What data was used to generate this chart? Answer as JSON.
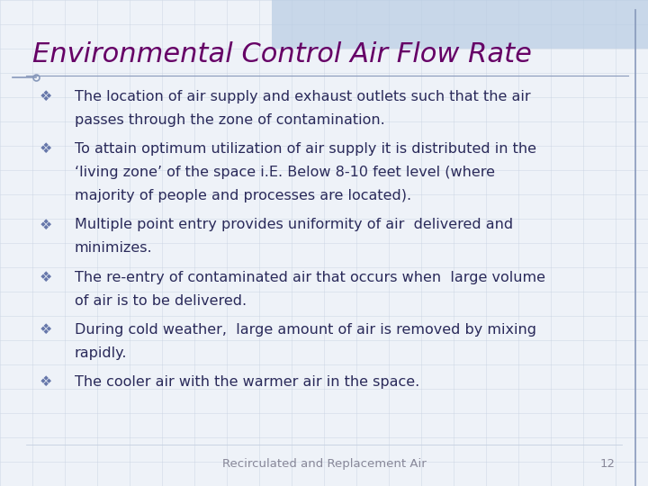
{
  "title": "Environmental Control Air Flow Rate",
  "title_color": "#660066",
  "title_fontsize": 22,
  "background_color": "#eef2f8",
  "grid_color": "#c5cfe0",
  "bullet_color": "#6677aa",
  "text_color": "#2a2a5a",
  "text_fontsize": 11.5,
  "footer_text": "Recirculated and Replacement Air",
  "footer_number": "12",
  "footer_fontsize": 9.5,
  "footer_color": "#888899",
  "bullets": [
    [
      "The location of air supply and exhaust outlets such that the air",
      "passes through the zone of contamination."
    ],
    [
      "To attain optimum utilization of air supply it is distributed in the",
      "‘living zone’ of the space i.E. Below 8-10 feet level (where",
      "majority of people and processes are located)."
    ],
    [
      "Multiple point entry provides uniformity of air  delivered and",
      "minimizes."
    ],
    [
      "The re-entry of contaminated air that occurs when  large volume",
      "of air is to be delivered."
    ],
    [
      "During cold weather,  large amount of air is removed by mixing",
      "rapidly."
    ],
    [
      "The cooler air with the warmer air in the space."
    ]
  ],
  "top_banner_color": "#b8cce4",
  "right_border_color": "#8899bb",
  "left_accent_color": "#8899bb",
  "title_underline_color": "#8899bb"
}
